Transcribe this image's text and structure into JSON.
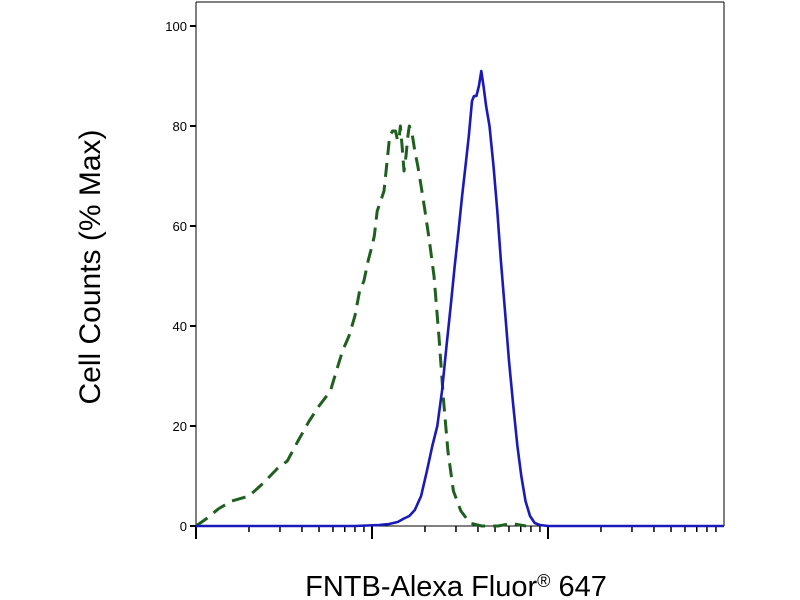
{
  "chart_data": {
    "type": "line",
    "title": "",
    "xlabel": "FNTB-Alexa Fluor",
    "xlabel_superscript": "®",
    "xlabel_suffix": " 647",
    "ylabel": "Cell Counts (% Max)",
    "x_scale": "log",
    "xlim": [
      10,
      10000
    ],
    "x_major_ticks": [
      10,
      100,
      1000
    ],
    "ylim": [
      0,
      100
    ],
    "yticks": [
      0,
      20,
      40,
      60,
      80,
      100
    ],
    "ytick_labels": [
      "0",
      "20",
      "40",
      "60",
      "80",
      "100"
    ],
    "grid": false,
    "series": [
      {
        "style": "dashed",
        "color": "#1f5f1f",
        "points": [
          [
            10,
            0
          ],
          [
            11.5,
            1.5
          ],
          [
            13.5,
            3.5
          ],
          [
            16,
            5
          ],
          [
            20,
            6
          ],
          [
            24,
            8.5
          ],
          [
            29,
            11.5
          ],
          [
            33,
            13
          ],
          [
            38,
            17
          ],
          [
            44,
            21
          ],
          [
            50,
            24
          ],
          [
            58,
            27
          ],
          [
            64,
            32
          ],
          [
            68,
            35
          ],
          [
            74,
            38
          ],
          [
            80,
            42
          ],
          [
            85,
            47
          ],
          [
            90,
            49
          ],
          [
            95,
            53
          ],
          [
            100,
            56
          ],
          [
            103,
            58
          ],
          [
            107,
            63
          ],
          [
            112,
            65
          ],
          [
            117,
            67
          ],
          [
            121,
            72
          ],
          [
            126,
            78
          ],
          [
            131,
            79
          ],
          [
            136,
            79
          ],
          [
            140,
            77
          ],
          [
            143,
            78
          ],
          [
            145,
            80
          ],
          [
            149,
            75
          ],
          [
            152,
            71
          ],
          [
            156,
            74
          ],
          [
            160,
            78
          ],
          [
            163,
            80
          ],
          [
            168,
            79
          ],
          [
            175,
            75
          ],
          [
            182,
            72
          ],
          [
            190,
            68
          ],
          [
            200,
            63
          ],
          [
            212,
            57
          ],
          [
            225,
            50
          ],
          [
            240,
            38
          ],
          [
            255,
            25
          ],
          [
            270,
            15
          ],
          [
            290,
            7
          ],
          [
            320,
            3
          ],
          [
            360,
            0.6
          ],
          [
            420,
            0
          ],
          [
            520,
            0
          ],
          [
            620,
            0.5
          ],
          [
            750,
            0
          ]
        ]
      },
      {
        "style": "solid",
        "color": "#1a1aba",
        "points": [
          [
            10,
            0
          ],
          [
            80,
            0
          ],
          [
            110,
            0.2
          ],
          [
            125,
            0.4
          ],
          [
            140,
            0.8
          ],
          [
            152,
            1.5
          ],
          [
            163,
            2
          ],
          [
            175,
            3.2
          ],
          [
            190,
            6
          ],
          [
            205,
            11
          ],
          [
            220,
            16
          ],
          [
            235,
            20
          ],
          [
            250,
            27
          ],
          [
            265,
            36
          ],
          [
            280,
            44
          ],
          [
            295,
            52
          ],
          [
            310,
            59
          ],
          [
            325,
            66
          ],
          [
            340,
            72
          ],
          [
            355,
            78
          ],
          [
            370,
            85
          ],
          [
            380,
            86
          ],
          [
            392,
            86
          ],
          [
            405,
            88
          ],
          [
            418,
            91
          ],
          [
            430,
            88
          ],
          [
            445,
            84
          ],
          [
            465,
            80
          ],
          [
            490,
            72
          ],
          [
            515,
            63
          ],
          [
            540,
            53
          ],
          [
            570,
            43
          ],
          [
            600,
            33
          ],
          [
            635,
            24
          ],
          [
            670,
            16
          ],
          [
            705,
            10
          ],
          [
            745,
            5
          ],
          [
            790,
            2
          ],
          [
            840,
            0.6
          ],
          [
            900,
            0.2
          ],
          [
            1000,
            0
          ],
          [
            10000,
            0
          ]
        ]
      }
    ]
  }
}
